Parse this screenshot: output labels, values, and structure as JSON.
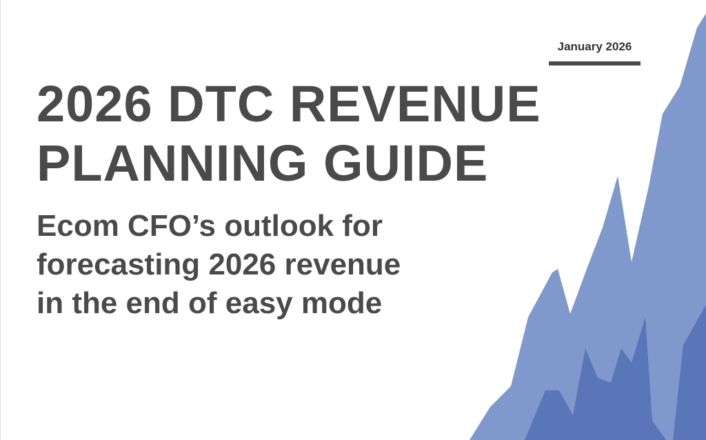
{
  "date": "January 2026",
  "title": [
    "2026 DTC REVENUE",
    "PLANNING GUIDE"
  ],
  "subtitle": [
    "Ecom CFO’s outlook for",
    "forecasting 2026 revenue",
    "in the end of easy mode"
  ]
}
